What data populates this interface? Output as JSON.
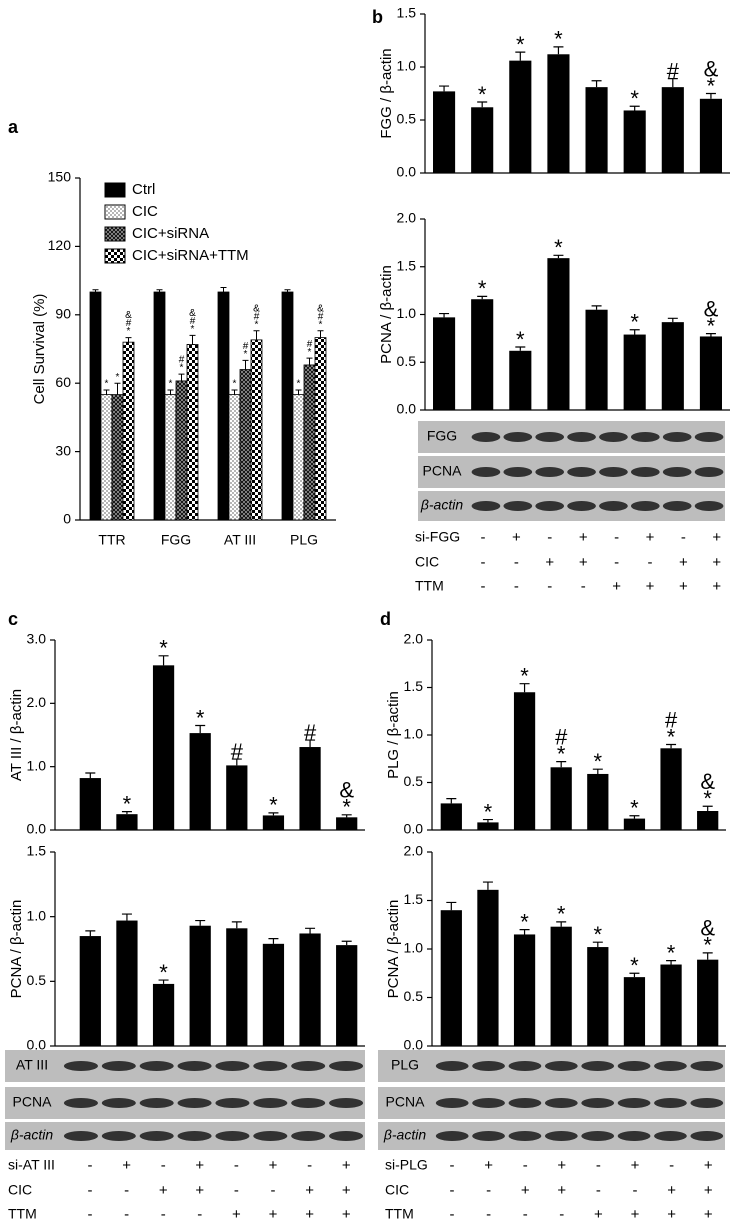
{
  "panel_labels": [
    "a",
    "b",
    "c",
    "d"
  ],
  "chart_data": [
    {
      "type": "bar",
      "y_label": "Cell Survival (%)",
      "categories": [
        "TTR",
        "FGG",
        "AT III",
        "PLG"
      ],
      "ylim": [
        0,
        150
      ],
      "yticks": [
        0,
        30,
        60,
        90,
        120,
        150
      ],
      "legend": "upper left",
      "series": [
        {
          "name": "Ctrl",
          "color": "#000000",
          "fill": "solid",
          "values": [
            100,
            100,
            100,
            100
          ],
          "errors": [
            1,
            1,
            2,
            1
          ],
          "annotations": [
            [],
            [],
            [],
            []
          ]
        },
        {
          "name": "CIC",
          "color": "#000000",
          "fill": "dots",
          "values": [
            55,
            55,
            55,
            55
          ],
          "errors": [
            2,
            2,
            2,
            2
          ],
          "annotations": [
            [
              "*"
            ],
            [
              "*"
            ],
            [
              "*"
            ],
            [
              "*"
            ]
          ]
        },
        {
          "name": "CIC+siRNA",
          "color": "#000000",
          "fill": "crosshatch",
          "values": [
            55,
            61,
            66,
            68
          ],
          "errors": [
            5,
            3,
            4,
            3
          ],
          "annotations": [
            [
              "*"
            ],
            [
              "#",
              "*"
            ],
            [
              "#",
              "*"
            ],
            [
              "#",
              "*"
            ]
          ]
        },
        {
          "name": "CIC+siRNA+TTM",
          "color": "#000000",
          "fill": "checker",
          "values": [
            78,
            77,
            79,
            80
          ],
          "errors": [
            2,
            4,
            4,
            3
          ],
          "annotations": [
            [
              "&",
              "#",
              "*"
            ],
            [
              "&",
              "#",
              "*"
            ],
            [
              "&",
              "#",
              "*"
            ],
            [
              "&",
              "#",
              "*"
            ]
          ]
        }
      ]
    },
    {
      "type": "bar",
      "y_label": "FGG / β-actin",
      "color": "#000000",
      "ylim": [
        0,
        1.5
      ],
      "yticks": [
        {
          "value": 0,
          "label": "0.0"
        },
        {
          "value": 0.5,
          "label": "0.5"
        },
        {
          "value": 1,
          "label": "1.0"
        },
        {
          "value": 1.5,
          "label": "1.5"
        }
      ],
      "values": [
        0.77,
        0.62,
        1.06,
        1.12,
        0.81,
        0.59,
        0.81,
        0.7
      ],
      "errors": [
        0.05,
        0.05,
        0.08,
        0.07,
        0.06,
        0.04,
        0.08,
        0.05
      ],
      "annotations": [
        [],
        [
          "*"
        ],
        [
          "*"
        ],
        [
          "*"
        ],
        [],
        [
          "*"
        ],
        [
          "#"
        ],
        [
          "&",
          "*"
        ]
      ]
    },
    {
      "type": "bar",
      "y_label": "PCNA / β-actin",
      "color": "#000000",
      "ylim": [
        0,
        2
      ],
      "yticks": [
        {
          "value": 0,
          "label": "0.0"
        },
        {
          "value": 0.5,
          "label": "0.5"
        },
        {
          "value": 1,
          "label": "1.0"
        },
        {
          "value": 1.5,
          "label": "1.5"
        },
        {
          "value": 2,
          "label": "2.0"
        }
      ],
      "values": [
        0.97,
        1.16,
        0.62,
        1.59,
        1.05,
        0.79,
        0.92,
        0.77
      ],
      "errors": [
        0.04,
        0.03,
        0.04,
        0.03,
        0.04,
        0.05,
        0.04,
        0.03
      ],
      "annotations": [
        [],
        [
          "*"
        ],
        [
          "*"
        ],
        [
          "*"
        ],
        [],
        [
          "*"
        ],
        [],
        [
          "&",
          "*"
        ]
      ]
    },
    {
      "type": "bar",
      "y_label": "AT III / β-actin",
      "color": "#000000",
      "ylim": [
        0,
        3
      ],
      "yticks": [
        {
          "value": 0,
          "label": "0.0"
        },
        {
          "value": 1,
          "label": "1.0"
        },
        {
          "value": 2,
          "label": "2.0"
        },
        {
          "value": 3,
          "label": "3.0"
        }
      ],
      "values": [
        0.82,
        0.25,
        2.6,
        1.53,
        1.02,
        0.23,
        1.31,
        0.2
      ],
      "errors": [
        0.08,
        0.04,
        0.15,
        0.12,
        0.1,
        0.04,
        0.11,
        0.04
      ],
      "annotations": [
        [],
        [
          "*"
        ],
        [
          "*"
        ],
        [
          "*"
        ],
        [
          "#"
        ],
        [
          "*"
        ],
        [
          "#"
        ],
        [
          "&",
          "*"
        ]
      ]
    },
    {
      "type": "bar",
      "y_label": "PCNA / β-actin",
      "color": "#000000",
      "ylim": [
        0,
        1.5
      ],
      "yticks": [
        {
          "value": 0,
          "label": "0.0"
        },
        {
          "value": 0.5,
          "label": "0.5"
        },
        {
          "value": 1,
          "label": "1.0"
        },
        {
          "value": 1.5,
          "label": "1.5"
        }
      ],
      "values": [
        0.85,
        0.97,
        0.48,
        0.93,
        0.91,
        0.79,
        0.87,
        0.78
      ],
      "errors": [
        0.04,
        0.05,
        0.03,
        0.04,
        0.05,
        0.04,
        0.04,
        0.03
      ],
      "annotations": [
        [],
        [],
        [
          "*"
        ],
        [],
        [],
        [],
        [],
        []
      ]
    },
    {
      "type": "bar",
      "y_label": "PLG / β-actin",
      "color": "#000000",
      "ylim": [
        0,
        2
      ],
      "yticks": [
        {
          "value": 0,
          "label": "0.0"
        },
        {
          "value": 0.5,
          "label": "0.5"
        },
        {
          "value": 1,
          "label": "1.0"
        },
        {
          "value": 1.5,
          "label": "1.5"
        },
        {
          "value": 2,
          "label": "2.0"
        }
      ],
      "values": [
        0.28,
        0.08,
        1.45,
        0.66,
        0.59,
        0.12,
        0.86,
        0.2
      ],
      "errors": [
        0.05,
        0.03,
        0.09,
        0.06,
        0.05,
        0.03,
        0.04,
        0.05
      ],
      "annotations": [
        [],
        [
          "*"
        ],
        [
          "*"
        ],
        [
          "#",
          "*"
        ],
        [
          "*"
        ],
        [
          "*"
        ],
        [
          "#",
          "*"
        ],
        [
          "&",
          "*"
        ]
      ]
    },
    {
      "type": "bar",
      "y_label": "PCNA / β-actin",
      "color": "#000000",
      "ylim": [
        0,
        2
      ],
      "yticks": [
        {
          "value": 0,
          "label": "0.0"
        },
        {
          "value": 0.5,
          "label": "0.5"
        },
        {
          "value": 1,
          "label": "1.0"
        },
        {
          "value": 1.5,
          "label": "1.5"
        },
        {
          "value": 2,
          "label": "2.0"
        }
      ],
      "values": [
        1.4,
        1.61,
        1.15,
        1.23,
        1.02,
        0.71,
        0.84,
        0.89
      ],
      "errors": [
        0.08,
        0.08,
        0.05,
        0.05,
        0.05,
        0.04,
        0.04,
        0.07
      ],
      "annotations": [
        [],
        [],
        [
          "*"
        ],
        [
          "*"
        ],
        [
          "*"
        ],
        [
          "*"
        ],
        [
          "*"
        ],
        [
          "&",
          "*"
        ]
      ]
    }
  ],
  "blots": [
    [
      "FGG",
      "PCNA",
      "β-actin"
    ],
    [
      "AT III",
      "PCNA",
      "β-actin"
    ],
    [
      "PLG",
      "PCNA",
      "β-actin"
    ]
  ],
  "treatments": [
    {
      "rows": [
        {
          "label": "si-FGG",
          "signs": [
            "-",
            "+",
            "-",
            "+",
            "-",
            "+",
            "-",
            "+"
          ]
        },
        {
          "label": "CIC",
          "signs": [
            "-",
            "-",
            "+",
            "+",
            "-",
            "-",
            "+",
            "+"
          ]
        },
        {
          "label": "TTM",
          "signs": [
            "-",
            "-",
            "-",
            "-",
            "+",
            "+",
            "+",
            "+"
          ]
        }
      ]
    },
    {
      "rows": [
        {
          "label": "si-AT III",
          "signs": [
            "-",
            "+",
            "-",
            "+",
            "-",
            "+",
            "-",
            "+"
          ]
        },
        {
          "label": "CIC",
          "signs": [
            "-",
            "-",
            "+",
            "+",
            "-",
            "-",
            "+",
            "+"
          ]
        },
        {
          "label": "TTM",
          "signs": [
            "-",
            "-",
            "-",
            "-",
            "+",
            "+",
            "+",
            "+"
          ]
        }
      ]
    },
    {
      "rows": [
        {
          "label": "si-PLG",
          "signs": [
            "-",
            "+",
            "-",
            "+",
            "-",
            "+",
            "-",
            "+"
          ]
        },
        {
          "label": "CIC",
          "signs": [
            "-",
            "-",
            "+",
            "+",
            "-",
            "-",
            "+",
            "+"
          ]
        },
        {
          "label": "TTM",
          "signs": [
            "-",
            "-",
            "-",
            "-",
            "+",
            "+",
            "+",
            "+"
          ]
        }
      ]
    }
  ]
}
